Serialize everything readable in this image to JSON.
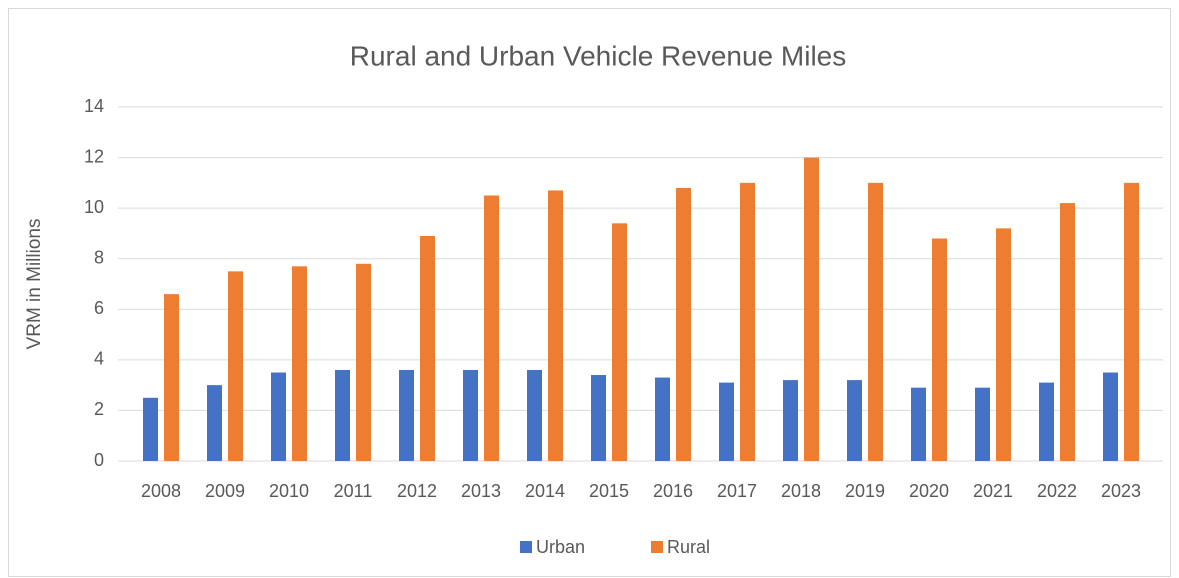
{
  "chart_data": {
    "type": "bar",
    "title": "Rural and Urban Vehicle Revenue Miles",
    "y_label": "VRM in Millions",
    "categories": [
      "2008",
      "2009",
      "2010",
      "2011",
      "2012",
      "2013",
      "2014",
      "2015",
      "2016",
      "2017",
      "2018",
      "2019",
      "2020",
      "2021",
      "2022",
      "2023"
    ],
    "series": [
      {
        "name": "Urban",
        "color": "#4472c4",
        "values": [
          2.5,
          3.0,
          3.5,
          3.6,
          3.6,
          3.6,
          3.6,
          3.4,
          3.3,
          3.1,
          3.2,
          3.2,
          2.9,
          2.9,
          3.1,
          3.5
        ]
      },
      {
        "name": "Rural",
        "color": "#ed7d31",
        "values": [
          6.6,
          7.5,
          7.7,
          7.8,
          8.9,
          10.5,
          10.7,
          9.4,
          10.8,
          11.0,
          12.0,
          11.0,
          8.8,
          9.2,
          10.2,
          11.0
        ]
      }
    ],
    "ylim": [
      0,
      14
    ],
    "yticks": [
      0,
      2,
      4,
      6,
      8,
      10,
      12,
      14
    ],
    "grid": true,
    "legend": "bottom"
  }
}
